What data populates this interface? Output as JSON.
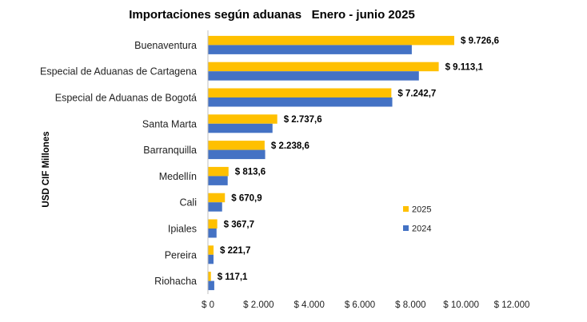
{
  "chart_data": {
    "type": "bar",
    "orientation": "horizontal",
    "title": "Importaciones según aduanas   Enero - junio 2025",
    "ylabel": "USD CIF Millones",
    "xlim": [
      0,
      12000
    ],
    "xticks": [
      0,
      2000,
      4000,
      6000,
      8000,
      10000,
      12000
    ],
    "xtick_labels": [
      "$ 0",
      "$ 2.000",
      "$ 4.000",
      "$ 6.000",
      "$ 8.000",
      "$ 10.000",
      "$ 12.000"
    ],
    "categories": [
      "Buenaventura",
      "Especial de Aduanas de Cartagena",
      "Especial de Aduanas de Bogotá",
      "Santa Marta",
      "Barranquilla",
      "Medellín",
      "Cali",
      "Ipiales",
      "Pereira",
      "Riohacha"
    ],
    "series": [
      {
        "name": "2025",
        "color": "#FFC000",
        "values": [
          9726.6,
          9113.1,
          7242.7,
          2737.6,
          2238.6,
          813.6,
          670.9,
          367.7,
          221.7,
          117.1
        ],
        "labels": [
          "$ 9.726,6",
          "$ 9.113,1",
          "$ 7.242,7",
          "$ 2.737,6",
          "$ 2.238,6",
          "$ 813,6",
          "$ 670,9",
          "$ 367,7",
          "$ 221,7",
          "$ 117,1"
        ]
      },
      {
        "name": "2024",
        "color": "#4472C4",
        "values": [
          8050,
          8330,
          7280,
          2550,
          2260,
          780,
          560,
          340,
          220,
          250
        ]
      }
    ],
    "legend": "right",
    "grid": false
  }
}
